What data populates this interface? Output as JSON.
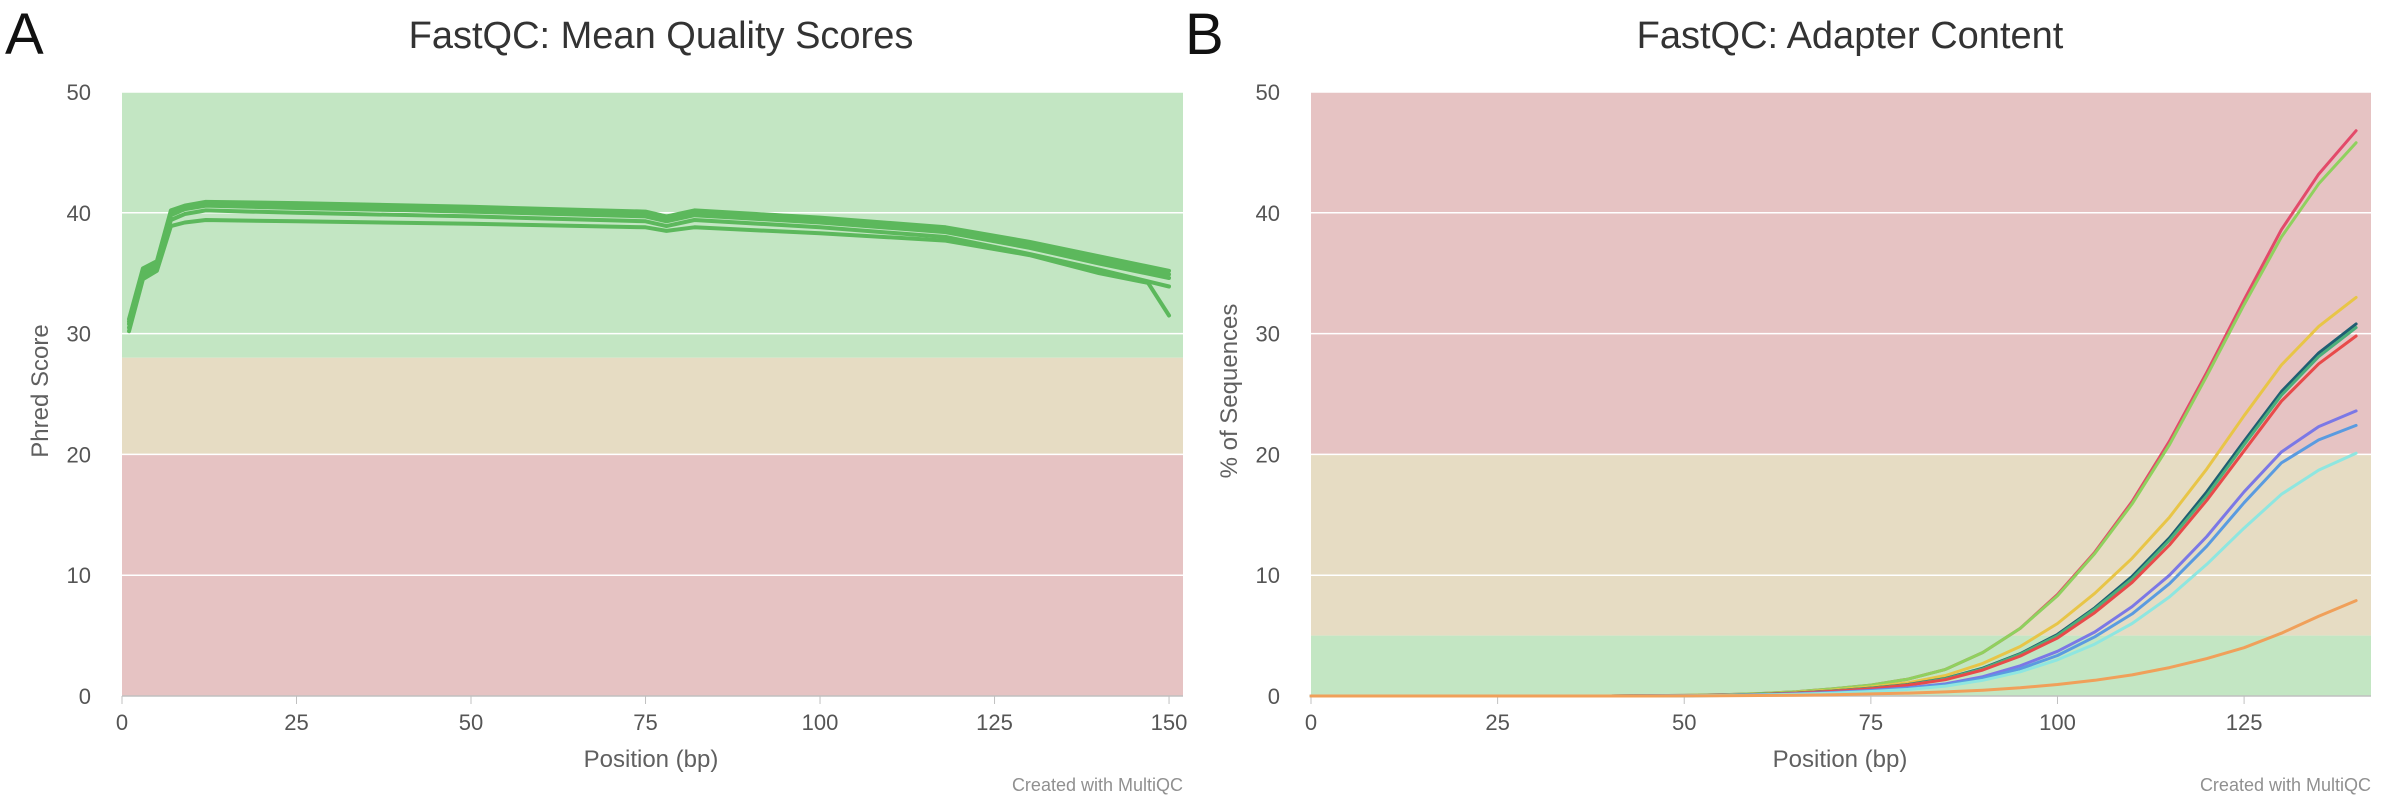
{
  "panels": [
    {
      "letter": "A",
      "credit": "Created with MultiQC",
      "chart_data": {
        "type": "line",
        "title": "FastQC: Mean Quality Scores",
        "xlabel": "Position (bp)",
        "ylabel": "Phred Score",
        "xlim": [
          0,
          152
        ],
        "ylim": [
          0,
          50
        ],
        "xticks": [
          0,
          25,
          50,
          75,
          100,
          125,
          150
        ],
        "yticks": [
          0,
          10,
          20,
          30,
          40,
          50
        ],
        "grid": true,
        "bands": [
          {
            "from": 28,
            "to": 50,
            "color": "#c3e6c3"
          },
          {
            "from": 20,
            "to": 28,
            "color": "#e6dcc3"
          },
          {
            "from": 0,
            "to": 20,
            "color": "#e6c3c3"
          }
        ],
        "series": [
          {
            "color": "#5cb85c",
            "x": [
              1,
              3,
              5,
              7,
              9,
              12,
              25,
              50,
              75,
              78,
              82,
              100,
              118,
              130,
              140,
              150
            ],
            "y": [
              31.2,
              35.4,
              36.0,
              40.2,
              40.6,
              40.9,
              40.8,
              40.5,
              40.1,
              39.7,
              40.2,
              39.6,
              38.8,
              37.6,
              36.4,
              35.2
            ]
          },
          {
            "color": "#5cb85c",
            "x": [
              1,
              3,
              5,
              7,
              9,
              12,
              25,
              50,
              75,
              78,
              82,
              100,
              118,
              130,
              140,
              150
            ],
            "y": [
              31.0,
              35.2,
              35.9,
              40.0,
              40.5,
              40.8,
              40.6,
              40.3,
              39.9,
              39.5,
              40.0,
              39.4,
              38.6,
              37.3,
              36.1,
              34.9
            ]
          },
          {
            "color": "#5cb85c",
            "x": [
              1,
              3,
              5,
              7,
              9,
              12,
              25,
              50,
              75,
              78,
              82,
              100,
              118,
              130,
              140,
              150
            ],
            "y": [
              30.8,
              35.0,
              35.7,
              39.8,
              40.3,
              40.6,
              40.4,
              40.1,
              39.7,
              39.3,
              39.8,
              39.2,
              38.4,
              37.1,
              35.8,
              34.6
            ]
          },
          {
            "color": "#5cb85c",
            "x": [
              1,
              3,
              5,
              7,
              9,
              12,
              25,
              50,
              75,
              78,
              82,
              100,
              118,
              130,
              140,
              150
            ],
            "y": [
              30.5,
              34.8,
              35.5,
              39.4,
              39.9,
              40.2,
              40.0,
              39.7,
              39.3,
              38.9,
              39.4,
              38.8,
              38.0,
              36.6,
              35.3,
              33.9
            ]
          },
          {
            "color": "#5cb85c",
            "x": [
              1,
              3,
              5,
              7,
              9,
              12,
              25,
              50,
              75,
              78,
              82,
              100,
              118,
              130,
              140,
              147,
              150
            ],
            "y": [
              30.2,
              34.5,
              35.2,
              38.9,
              39.2,
              39.4,
              39.3,
              39.1,
              38.8,
              38.5,
              38.8,
              38.3,
              37.7,
              36.5,
              35.0,
              34.2,
              31.5
            ]
          }
        ]
      }
    },
    {
      "letter": "B",
      "credit": "Created with MultiQC",
      "chart_data": {
        "type": "line",
        "title": "FastQC: Adapter Content",
        "xlabel": "Position (bp)",
        "ylabel": "% of Sequences",
        "xlim": [
          0,
          142
        ],
        "ylim": [
          0,
          50
        ],
        "xticks": [
          0,
          25,
          50,
          75,
          100,
          125
        ],
        "yticks": [
          0,
          10,
          20,
          30,
          40,
          50
        ],
        "grid": true,
        "bands": [
          {
            "from": 20,
            "to": 50,
            "color": "#e6c3c3"
          },
          {
            "from": 5,
            "to": 20,
            "color": "#e6dcc3"
          },
          {
            "from": 0,
            "to": 5,
            "color": "#c3e6c3"
          }
        ],
        "x": [
          0,
          10,
          20,
          30,
          40,
          50,
          55,
          60,
          65,
          70,
          75,
          80,
          85,
          90,
          95,
          100,
          105,
          110,
          115,
          120,
          125,
          130,
          135,
          140
        ],
        "series": [
          {
            "color": "#e34a6a",
            "y": [
              0,
              0,
              0,
              0,
              0,
              0.05,
              0.1,
              0.2,
              0.35,
              0.6,
              0.9,
              1.4,
              2.2,
              3.6,
              5.6,
              8.4,
              11.9,
              16.1,
              21.1,
              26.8,
              32.8,
              38.6,
              43.2,
              46.8
            ]
          },
          {
            "color": "#8fd15e",
            "y": [
              0,
              0,
              0,
              0,
              0,
              0.05,
              0.1,
              0.2,
              0.35,
              0.6,
              0.9,
              1.4,
              2.2,
              3.6,
              5.6,
              8.3,
              11.8,
              15.9,
              20.8,
              26.5,
              32.4,
              38.0,
              42.4,
              45.8
            ]
          },
          {
            "color": "#e8c547",
            "y": [
              0,
              0,
              0,
              0,
              0,
              0.04,
              0.08,
              0.15,
              0.3,
              0.5,
              0.75,
              1.1,
              1.7,
              2.7,
              4.1,
              6.0,
              8.5,
              11.4,
              14.8,
              18.8,
              23.2,
              27.4,
              30.6,
              33.0
            ]
          },
          {
            "color": "#1f5f73",
            "y": [
              0,
              0,
              0,
              0,
              0,
              0.03,
              0.07,
              0.13,
              0.25,
              0.42,
              0.65,
              0.95,
              1.45,
              2.3,
              3.5,
              5.1,
              7.3,
              9.9,
              13.1,
              16.9,
              21.1,
              25.2,
              28.4,
              30.8
            ]
          },
          {
            "color": "#4caf7a",
            "y": [
              0,
              0,
              0,
              0,
              0,
              0.03,
              0.07,
              0.13,
              0.25,
              0.42,
              0.64,
              0.93,
              1.42,
              2.25,
              3.45,
              5.0,
              7.2,
              9.7,
              12.9,
              16.6,
              20.8,
              24.9,
              28.1,
              30.5
            ]
          },
          {
            "color": "#e84a4a",
            "y": [
              0,
              0,
              0,
              0,
              0,
              0.03,
              0.06,
              0.12,
              0.23,
              0.4,
              0.6,
              0.9,
              1.35,
              2.15,
              3.3,
              4.8,
              6.9,
              9.4,
              12.5,
              16.2,
              20.3,
              24.4,
              27.5,
              29.8
            ]
          },
          {
            "color": "#7b78e6",
            "y": [
              0,
              0,
              0,
              0,
              0,
              0.02,
              0.05,
              0.1,
              0.18,
              0.3,
              0.46,
              0.68,
              1.0,
              1.6,
              2.5,
              3.7,
              5.3,
              7.4,
              10.0,
              13.2,
              16.9,
              20.2,
              22.3,
              23.6
            ]
          },
          {
            "color": "#5a9be0",
            "y": [
              0,
              0,
              0,
              0,
              0,
              0.02,
              0.04,
              0.09,
              0.16,
              0.27,
              0.42,
              0.62,
              0.92,
              1.45,
              2.25,
              3.35,
              4.9,
              6.8,
              9.3,
              12.4,
              16.0,
              19.3,
              21.2,
              22.4
            ]
          },
          {
            "color": "#8ee6e0",
            "y": [
              0,
              0,
              0,
              0,
              0,
              0.02,
              0.04,
              0.08,
              0.14,
              0.24,
              0.37,
              0.55,
              0.82,
              1.3,
              2.0,
              3.0,
              4.3,
              6.0,
              8.2,
              10.9,
              13.9,
              16.7,
              18.7,
              20.1
            ]
          },
          {
            "color": "#f0a05a",
            "y": [
              0,
              0,
              0,
              0,
              0,
              0.01,
              0.02,
              0.04,
              0.07,
              0.11,
              0.17,
              0.24,
              0.34,
              0.48,
              0.68,
              0.95,
              1.3,
              1.75,
              2.35,
              3.1,
              4.0,
              5.2,
              6.6,
              7.9
            ]
          }
        ]
      }
    }
  ]
}
